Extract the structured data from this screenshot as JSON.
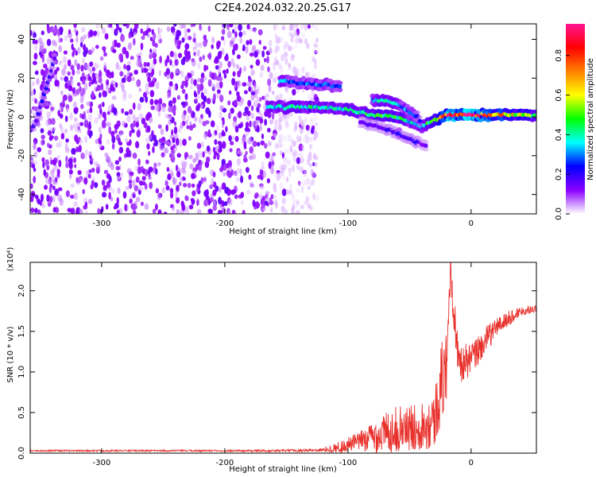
{
  "title": "C2E4.2024.032.20.25.G17",
  "chart_data": [
    {
      "type": "heatmap",
      "xlabel": "Height of straight line (km)",
      "ylabel": "Frequency (Hz)",
      "xlim": [
        -358,
        53
      ],
      "ylim": [
        -50,
        48
      ],
      "xticks": [
        -300,
        -200,
        -100,
        0
      ],
      "yticks": [
        -40,
        -20,
        0,
        20,
        40
      ],
      "xtick_labels": [
        "-300",
        "-200",
        "-100",
        "0"
      ],
      "ytick_labels": [
        "-40",
        "-20",
        "0",
        "20",
        "40"
      ],
      "colorbar": {
        "label": "Normalized spectral amplitude",
        "range": [
          0,
          0.96
        ],
        "ticks": [
          0.0,
          0.2,
          0.4,
          0.6,
          0.8
        ],
        "tick_labels": [
          "0.0",
          "0.2",
          "0.4",
          "0.6",
          "0.8"
        ],
        "colors": [
          "#ffffff",
          "#8b00ff",
          "#0000ff",
          "#00ffff",
          "#00ff00",
          "#ffff00",
          "#ff8000",
          "#ff0000",
          "#ff1493"
        ]
      },
      "noise_region": {
        "x_range": [
          -358,
          -125
        ],
        "y_range": [
          -50,
          48
        ],
        "typical_amplitude": 0.1
      },
      "ridges": [
        {
          "x": [
            -165,
            -140,
            -120,
            -100,
            -80,
            -60,
            -40,
            -20,
            0,
            20,
            53
          ],
          "y": [
            5,
            5,
            5,
            4,
            1,
            0,
            -5,
            1,
            1,
            1,
            1
          ],
          "amplitude": [
            0.35,
            0.4,
            0.4,
            0.38,
            0.45,
            0.45,
            0.3,
            0.85,
            0.9,
            0.75,
            0.45
          ]
        },
        {
          "x": [
            -80,
            -65,
            -50,
            -40
          ],
          "y": [
            9,
            8,
            3,
            -2
          ],
          "amplitude": [
            0.35,
            0.35,
            0.3,
            0.25
          ]
        },
        {
          "x": [
            -90,
            -75,
            -60,
            -45,
            -35
          ],
          "y": [
            -3,
            -5,
            -8,
            -13,
            -15
          ],
          "amplitude": [
            0.15,
            0.18,
            0.2,
            0.2,
            0.12
          ]
        },
        {
          "x": [
            -155,
            -130,
            -105
          ],
          "y": [
            19,
            17,
            16
          ],
          "amplitude": [
            0.3,
            0.3,
            0.28
          ]
        },
        {
          "x": [
            -355,
            -345,
            -337
          ],
          "y": [
            -5,
            15,
            33
          ],
          "amplitude": [
            0.2,
            0.2,
            0.2
          ]
        }
      ]
    },
    {
      "type": "line",
      "xlabel": "Height of straight line (km)",
      "ylabel": "SNR (10 * v/v)",
      "y_scale_label": "(x10⁴)",
      "xlim": [
        -358,
        53
      ],
      "ylim": [
        0,
        2.35
      ],
      "xticks": [
        -300,
        -200,
        -100,
        0
      ],
      "yticks": [
        0.0,
        0.5,
        1.0,
        1.5,
        2.0
      ],
      "xtick_labels": [
        "-300",
        "-200",
        "-100",
        "0"
      ],
      "ytick_labels": [
        "0.0",
        "0.5",
        "1.0",
        "1.5",
        "2.0"
      ],
      "color": "#e8302b",
      "series": [
        {
          "x": [
            -358,
            -300,
            -250,
            -200,
            -150,
            -120,
            -105,
            -90,
            -80,
            -70,
            -60,
            -50,
            -40,
            -30,
            -25,
            -20,
            -17,
            -10,
            0,
            10,
            20,
            30,
            40,
            53
          ],
          "y": [
            0.03,
            0.03,
            0.03,
            0.03,
            0.03,
            0.04,
            0.08,
            0.15,
            0.2,
            0.25,
            0.3,
            0.3,
            0.35,
            0.4,
            0.8,
            1.1,
            2.3,
            1.1,
            1.15,
            1.35,
            1.55,
            1.65,
            1.75,
            1.78
          ],
          "spread": [
            0.01,
            0.01,
            0.01,
            0.01,
            0.015,
            0.02,
            0.08,
            0.12,
            0.2,
            0.25,
            0.28,
            0.28,
            0.3,
            0.35,
            0.5,
            0.5,
            0.3,
            0.25,
            0.2,
            0.18,
            0.12,
            0.1,
            0.06,
            0.04
          ]
        }
      ]
    }
  ]
}
